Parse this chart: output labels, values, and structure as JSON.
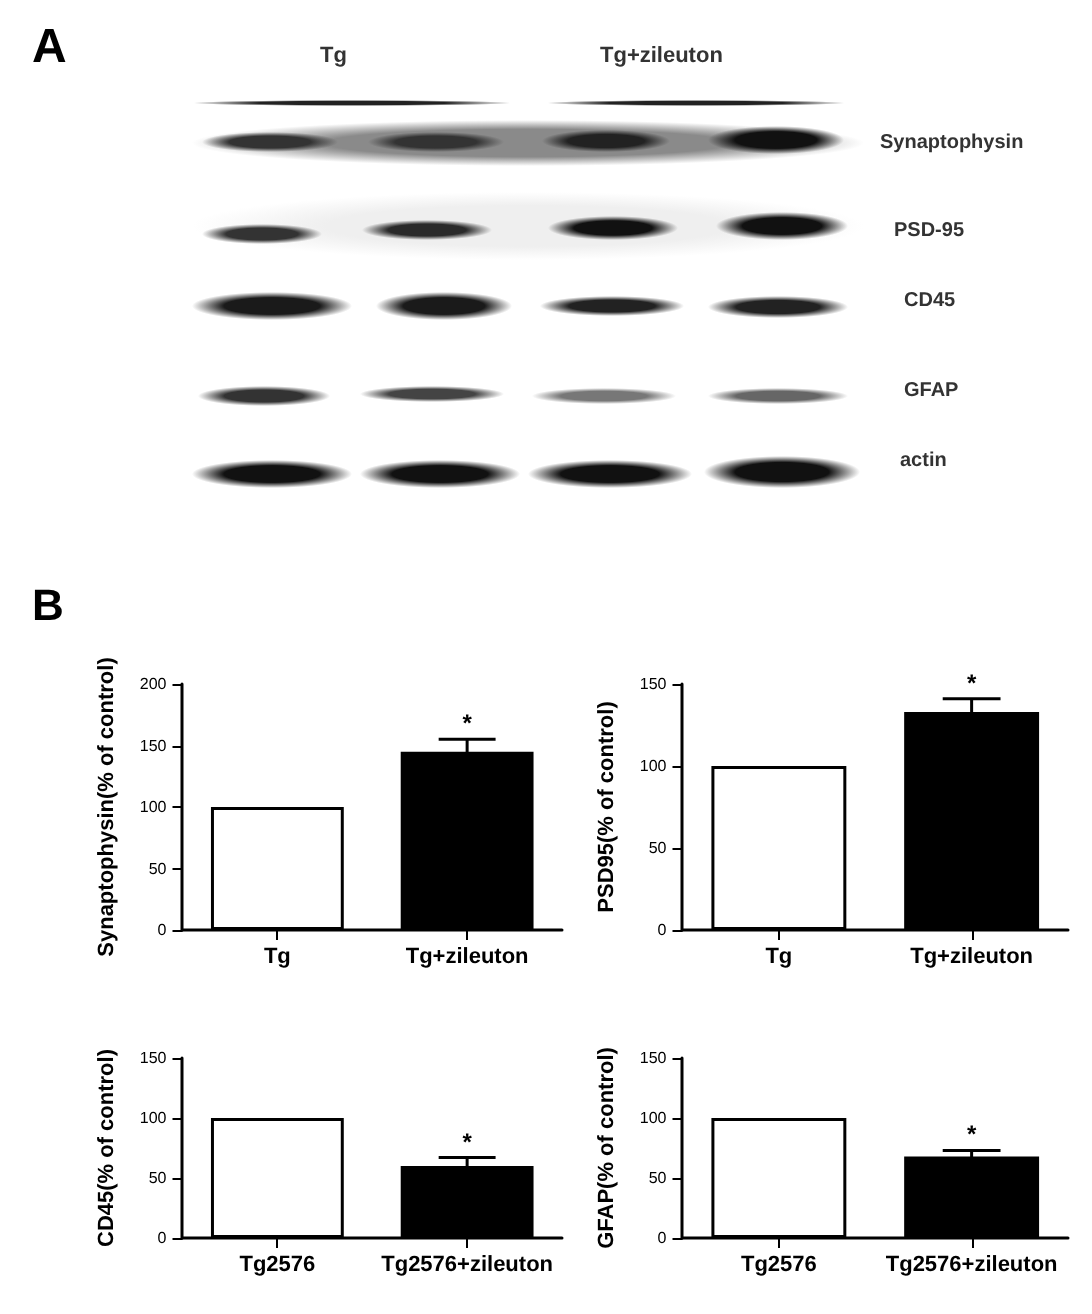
{
  "chart_data": [
    {
      "type": "other",
      "annotations": [
        "A",
        "Tg",
        "Tg+zileuton",
        "Synaptophysin",
        "PSD-95",
        "CD45",
        "GFAP",
        "actin",
        "B"
      ]
    },
    {
      "type": "bar",
      "ylabel": "Synaptophysin(% of control)",
      "categories": [
        "Tg",
        "Tg+zileuton"
      ],
      "values": [
        100,
        145
      ],
      "errors": [
        null,
        10
      ],
      "colors": [
        "#ffffff",
        "#000000"
      ],
      "ylim": [
        0,
        200
      ],
      "yticks": [
        0,
        50,
        100,
        150,
        200
      ],
      "annotations": [
        {
          "text": "*",
          "x": "Tg+zileuton",
          "y": 155
        }
      ]
    },
    {
      "type": "bar",
      "ylabel": "PSD95(% of control)",
      "categories": [
        "Tg",
        "Tg+zileuton"
      ],
      "values": [
        100,
        133
      ],
      "errors": [
        null,
        8
      ],
      "colors": [
        "#ffffff",
        "#000000"
      ],
      "ylim": [
        0,
        150
      ],
      "yticks": [
        0,
        50,
        100,
        150
      ],
      "annotations": [
        {
          "text": "*",
          "x": "Tg+zileuton",
          "y": 141
        }
      ]
    },
    {
      "type": "bar",
      "ylabel": "CD45(% of control)",
      "categories": [
        "Tg2576",
        "Tg2576+zileuton"
      ],
      "values": [
        100,
        60
      ],
      "errors": [
        null,
        7
      ],
      "colors": [
        "#ffffff",
        "#000000"
      ],
      "ylim": [
        0,
        150
      ],
      "yticks": [
        0,
        50,
        100,
        150
      ],
      "annotations": [
        {
          "text": "*",
          "x": "Tg2576+zileuton",
          "y": 67
        }
      ]
    },
    {
      "type": "bar",
      "ylabel": "GFAP(% of control)",
      "categories": [
        "Tg2576",
        "Tg2576+zileuton"
      ],
      "values": [
        100,
        68
      ],
      "errors": [
        null,
        5
      ],
      "colors": [
        "#ffffff",
        "#000000"
      ],
      "ylim": [
        0,
        150
      ],
      "yticks": [
        0,
        50,
        100,
        150
      ],
      "annotations": [
        {
          "text": "*",
          "x": "Tg2576+zileuton",
          "y": 73
        }
      ]
    }
  ]
}
